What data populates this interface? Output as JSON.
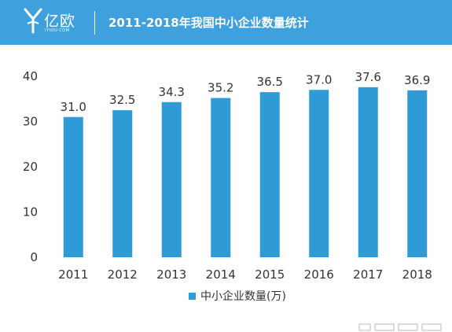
{
  "header": {
    "brand_name": "亿欧",
    "brand_sub": "IYIOU·COM",
    "title": "2011-2018年我国中小企业数量统计",
    "colors": {
      "background": "#3ea0dc",
      "text": "#ffffff"
    }
  },
  "chart_data": {
    "type": "bar",
    "categories": [
      "2011",
      "2012",
      "2013",
      "2014",
      "2015",
      "2016",
      "2017",
      "2018"
    ],
    "series": [
      {
        "name": "中小企业数量(万)",
        "values": [
          31.0,
          32.5,
          34.3,
          35.2,
          36.5,
          37.0,
          37.6,
          36.9
        ],
        "color": "#2f9bd6"
      }
    ],
    "data_labels": [
      "31.0",
      "32.5",
      "34.3",
      "35.2",
      "36.5",
      "37.0",
      "37.6",
      "36.9"
    ],
    "ylim": [
      0,
      40
    ],
    "yticks": [
      0,
      10,
      20,
      30,
      40
    ],
    "grid": false,
    "legend_position": "bottom"
  }
}
